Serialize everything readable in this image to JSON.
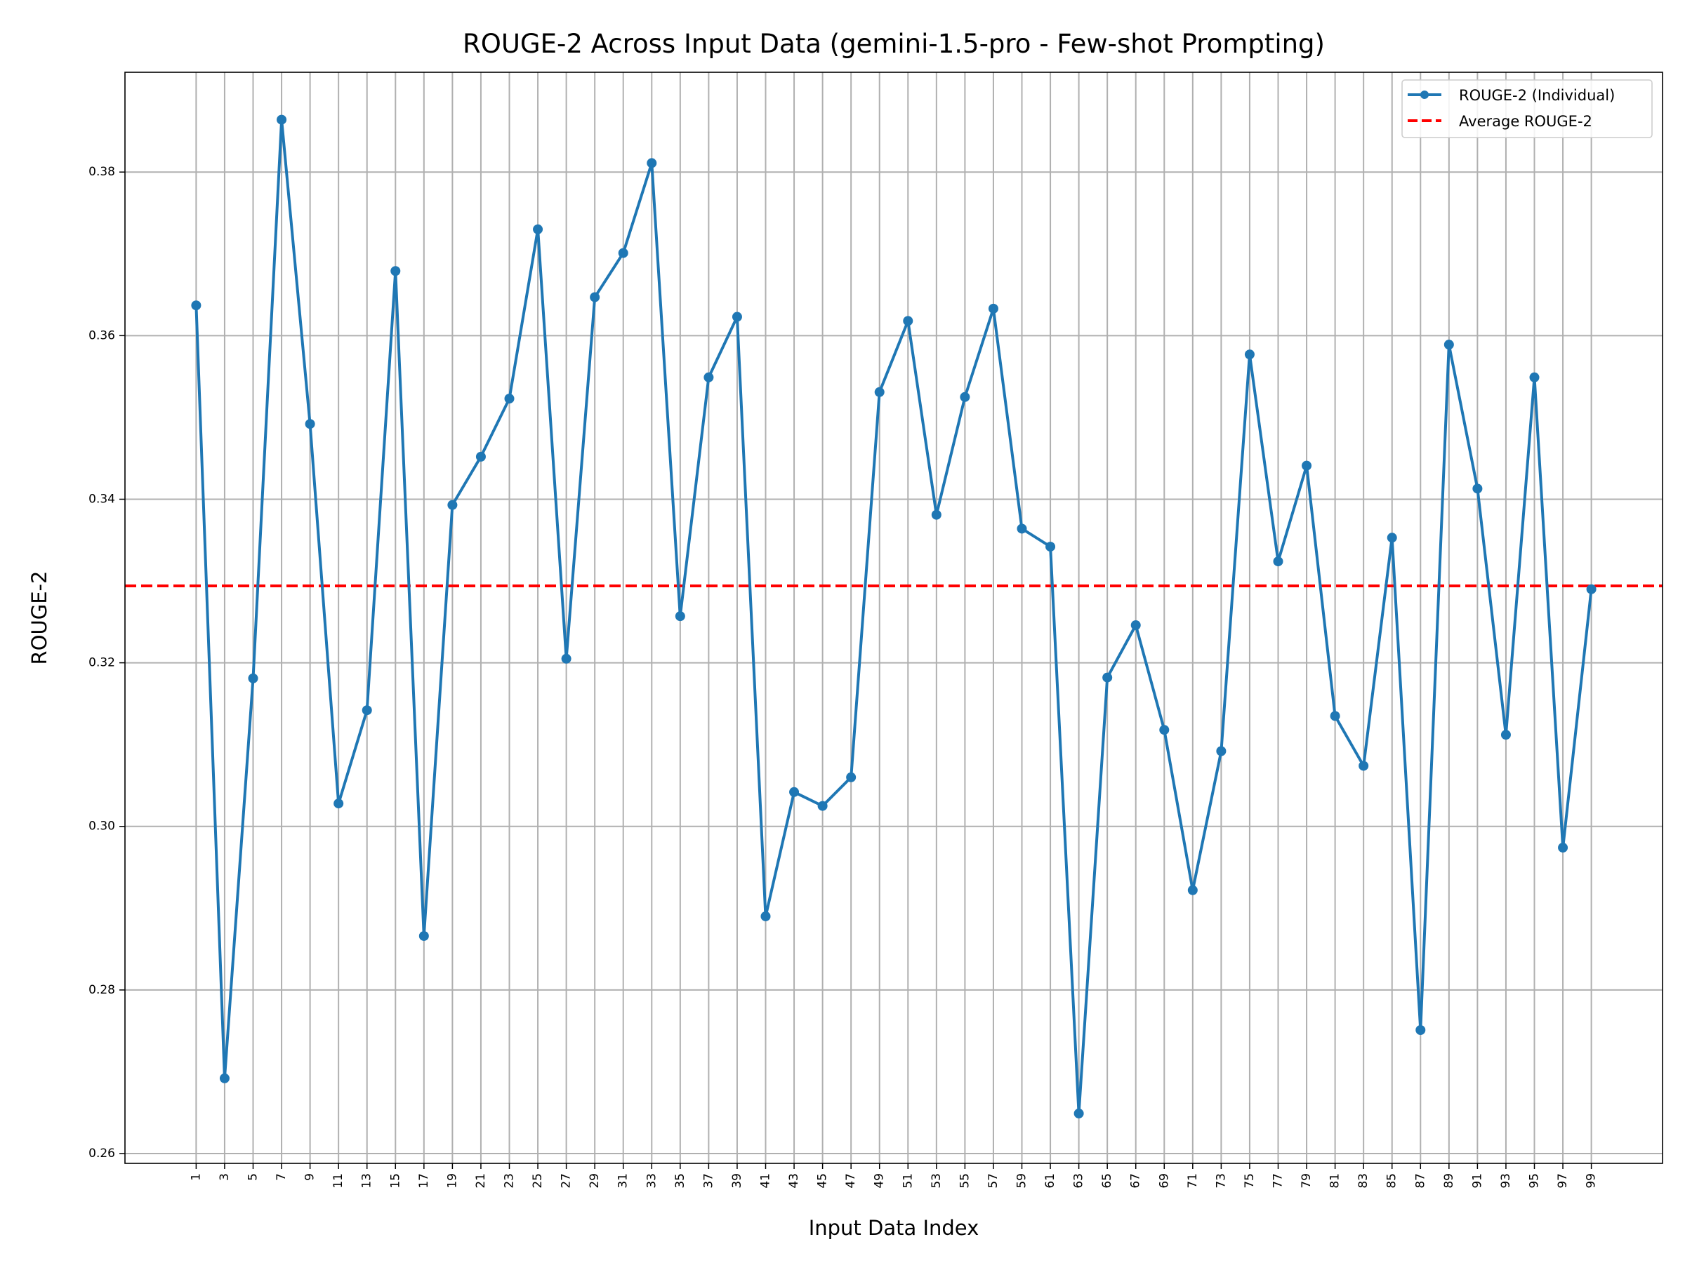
{
  "chart_data": {
    "type": "line",
    "title": "ROUGE-2 Across Input Data (gemini-1.5-pro - Few-shot Prompting)",
    "xlabel": "Input Data Index",
    "ylabel": "ROUGE-2",
    "xlim": [
      -4,
      104
    ],
    "ylim": [
      0.2588,
      0.3922
    ],
    "y_ticks": [
      0.26,
      0.28,
      0.3,
      0.32,
      0.34,
      0.36,
      0.38
    ],
    "y_tick_labels": [
      "0.26",
      "0.28",
      "0.30",
      "0.32",
      "0.34",
      "0.36",
      "0.38"
    ],
    "x_ticks": [
      1,
      3,
      5,
      7,
      9,
      11,
      13,
      15,
      17,
      19,
      21,
      23,
      25,
      27,
      29,
      31,
      33,
      35,
      37,
      39,
      41,
      43,
      45,
      47,
      49,
      51,
      53,
      55,
      57,
      59,
      61,
      63,
      65,
      67,
      69,
      71,
      73,
      75,
      77,
      79,
      81,
      83,
      85,
      87,
      89,
      91,
      93,
      95,
      97,
      99
    ],
    "x_tick_labels": [
      "1",
      "3",
      "5",
      "7",
      "9",
      "11",
      "13",
      "15",
      "17",
      "19",
      "21",
      "23",
      "25",
      "27",
      "29",
      "31",
      "33",
      "35",
      "37",
      "39",
      "41",
      "43",
      "45",
      "47",
      "49",
      "51",
      "53",
      "55",
      "57",
      "59",
      "61",
      "63",
      "65",
      "67",
      "69",
      "71",
      "73",
      "75",
      "77",
      "79",
      "81",
      "83",
      "85",
      "87",
      "89",
      "91",
      "93",
      "95",
      "97",
      "99"
    ],
    "grid": true,
    "legend_position": "top-right",
    "series": [
      {
        "name": "ROUGE-2 (Individual)",
        "color": "#1f77b4",
        "x": [
          1,
          3,
          5,
          7,
          9,
          11,
          13,
          15,
          17,
          19,
          21,
          23,
          25,
          27,
          29,
          31,
          33,
          35,
          37,
          39,
          41,
          43,
          45,
          47,
          49,
          51,
          53,
          55,
          57,
          59,
          61,
          63,
          65,
          67,
          69,
          71,
          73,
          75,
          77,
          79,
          81,
          83,
          85,
          87,
          89,
          91,
          93,
          95,
          97,
          99
        ],
        "values": [
          0.3637,
          0.2692,
          0.3181,
          0.3864,
          0.3492,
          0.3028,
          0.3142,
          0.3679,
          0.2866,
          0.3393,
          0.3452,
          0.3523,
          0.373,
          0.3205,
          0.3647,
          0.3701,
          0.3811,
          0.3257,
          0.3549,
          0.3623,
          0.289,
          0.3042,
          0.3025,
          0.306,
          0.3531,
          0.3618,
          0.3381,
          0.3525,
          0.3633,
          0.3364,
          0.3342,
          0.2649,
          0.3182,
          0.3246,
          0.3118,
          0.2922,
          0.3092,
          0.3577,
          0.3324,
          0.3441,
          0.3135,
          0.3074,
          0.3353,
          0.2751,
          0.3589,
          0.3413,
          0.3112,
          0.3549,
          0.2974,
          0.329
        ]
      },
      {
        "name": "Average ROUGE-2",
        "color": "#ff0000",
        "style": "dashed",
        "value": 0.3294
      }
    ]
  }
}
